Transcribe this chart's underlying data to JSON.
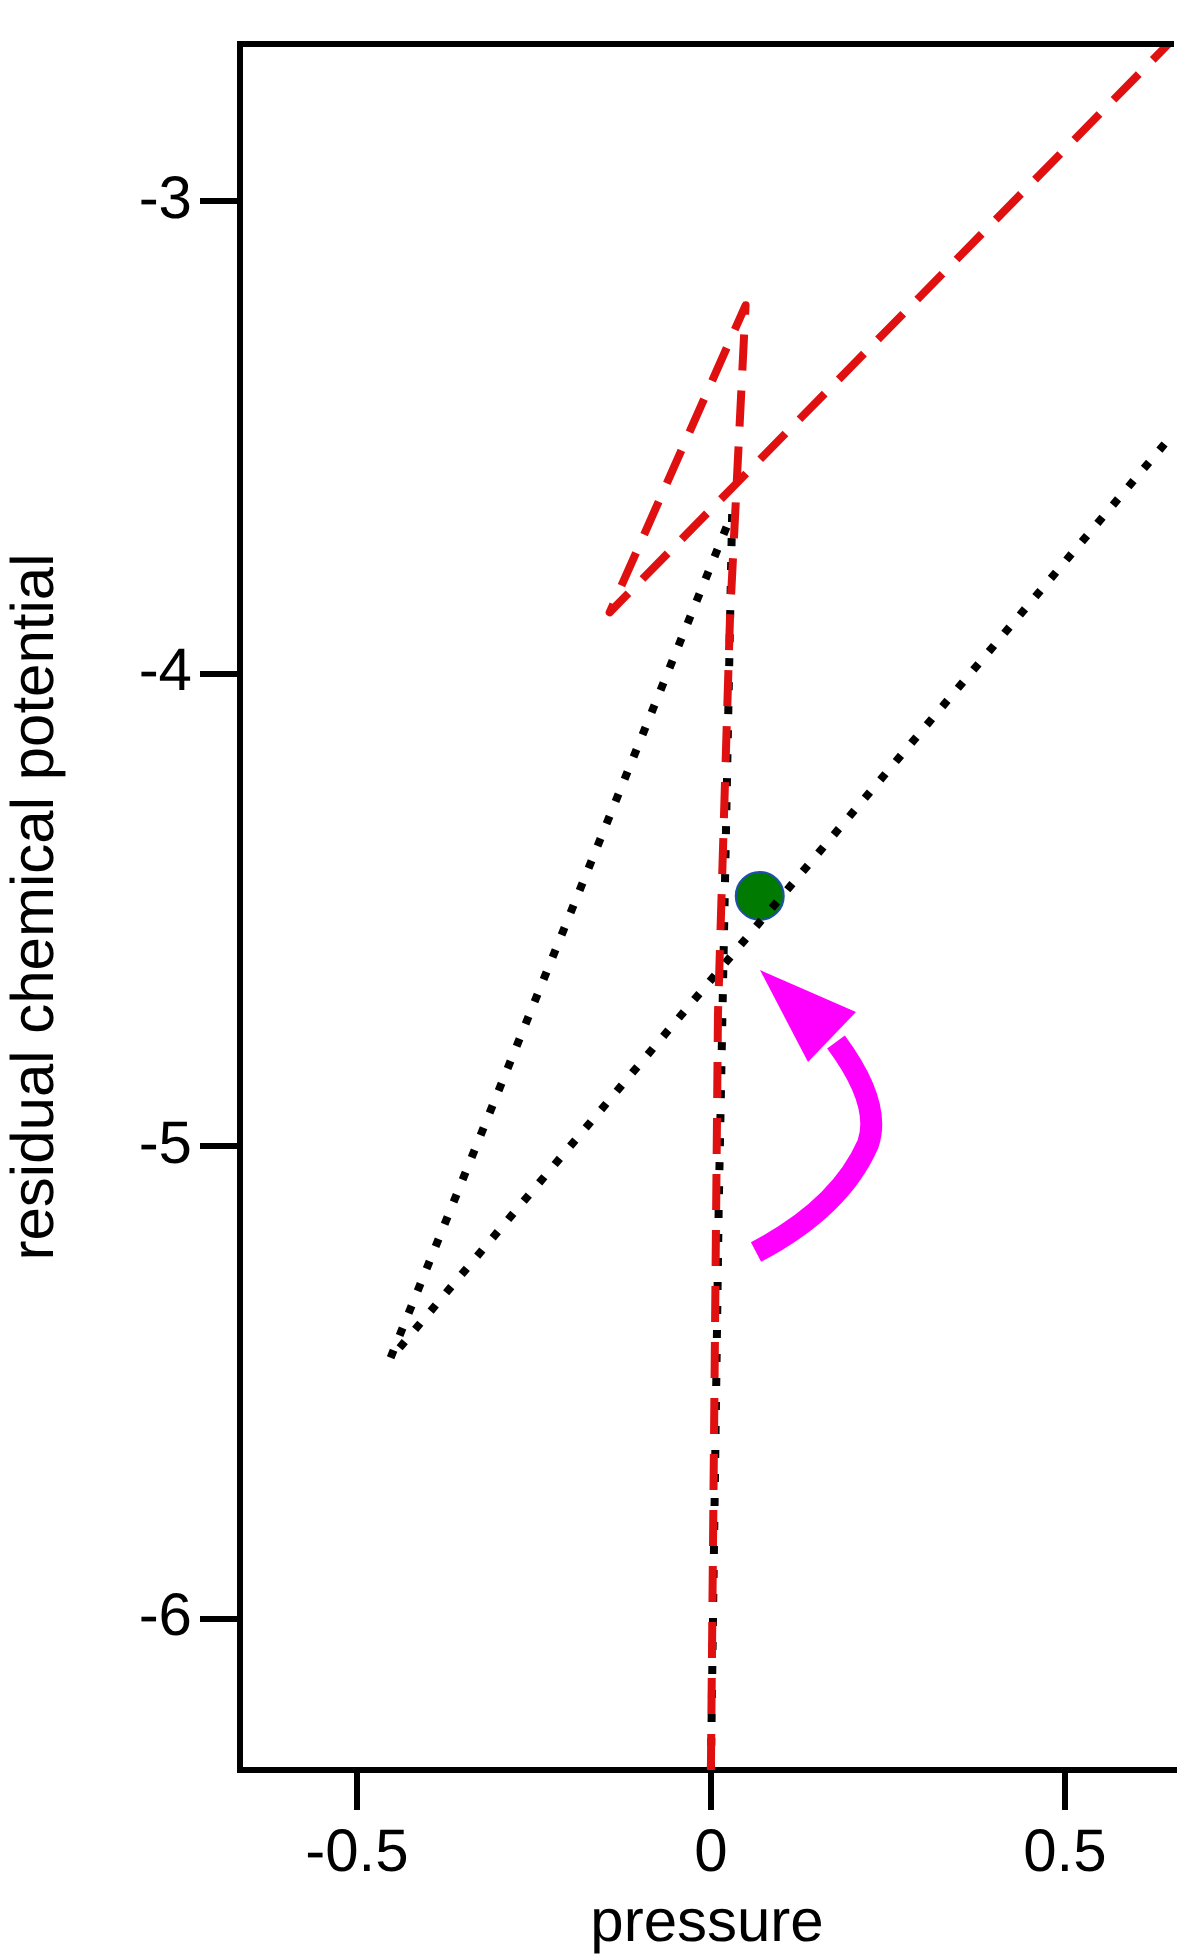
{
  "chart_data": {
    "type": "line",
    "xlabel": "pressure",
    "ylabel": "residual chemical potential",
    "xlim": [
      -0.665,
      0.654
    ],
    "ylim": [
      -6.32,
      -2.667
    ],
    "xticks": [
      -0.5,
      0,
      0.5
    ],
    "yticks": [
      -6,
      -5,
      -4,
      -3
    ],
    "grid": false,
    "legend": false,
    "series": [
      {
        "color": "#e01010",
        "line_style": "dashed",
        "marker": "none",
        "x": [
          0,
          0.01,
          0.027,
          0.049,
          -0.143,
          0.646
        ],
        "values": [
          -6.32,
          -4.72,
          -3.88,
          -3.22,
          -3.87,
          -2.667
        ]
      },
      {
        "color": "#000000",
        "line_style": "dotted",
        "marker": "none",
        "x": [
          0,
          0.011,
          0.03,
          -0.453,
          0.654
        ],
        "values": [
          -6.32,
          -5.13,
          -3.66,
          -5.45,
          -3.49
        ]
      },
      {
        "type": "scatter",
        "color": "#007a00",
        "marker": "circle",
        "x": [
          0.069
        ],
        "values": [
          -4.47
        ]
      }
    ]
  }
}
